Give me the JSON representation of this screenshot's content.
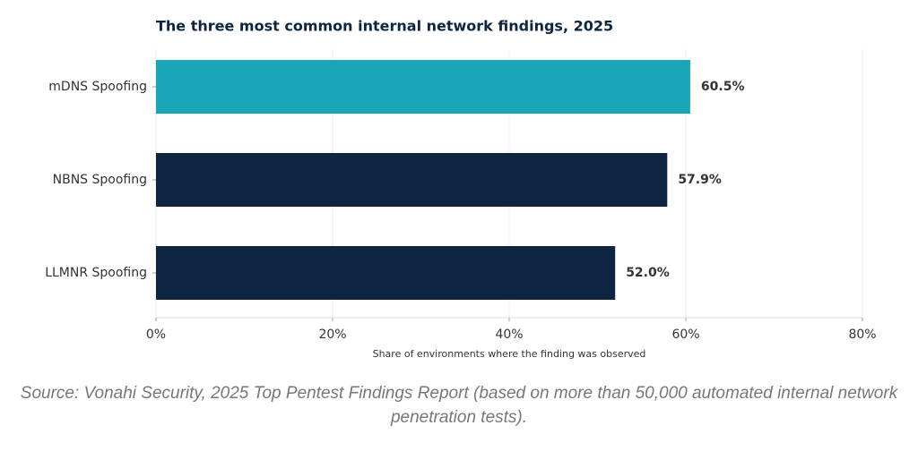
{
  "chart_data": {
    "type": "bar",
    "orientation": "horizontal",
    "title": "The three most common internal network findings, 2025",
    "categories": [
      "mDNS Spoofing",
      "NBNS Spoofing",
      "LLMNR Spoofing"
    ],
    "values": [
      60.5,
      57.9,
      52.0
    ],
    "value_labels": [
      "60.5%",
      "57.9%",
      "52.0%"
    ],
    "colors": [
      "#1aa5b8",
      "#0d2540",
      "#0d2540"
    ],
    "xlim": [
      0,
      80
    ],
    "xticks": [
      {
        "value": 0,
        "label": "0%"
      },
      {
        "value": 20,
        "label": "20%"
      },
      {
        "value": 40,
        "label": "40%"
      },
      {
        "value": 60,
        "label": "60%"
      },
      {
        "value": 80,
        "label": "80%"
      }
    ],
    "xlabel": "Share of environments where the finding was observed",
    "grid": true,
    "source": "Source: Vonahi Security, 2025 Top Pentest Findings Report (based on more than 50,000 automated internal network penetration tests)."
  }
}
